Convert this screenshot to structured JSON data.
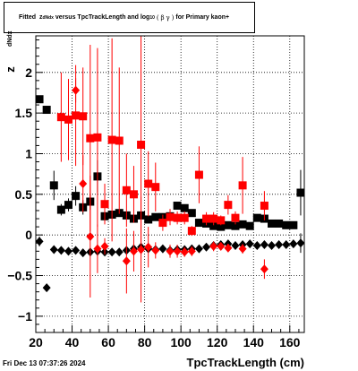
{
  "title": {
    "prefix": "Fitted",
    "var": "z",
    "var_sub": "dNdx",
    "middle": "versus TpcTrackLength and log",
    "log_sub": "10",
    "paren_open": "(",
    "beta": "β",
    "gamma": "γ",
    "paren_close": ")",
    "suffix": "for Primary kaon+"
  },
  "datestamp": "Fri Dec 13 07:37:26 2024",
  "chart_data": {
    "type": "scatter",
    "xlabel": "TpcTrackLength (cm)",
    "ylabel": "z",
    "ylabel_sub": "dNdx",
    "xlim": [
      20,
      168
    ],
    "ylim": [
      -1.2,
      2.45
    ],
    "xticks": [
      20,
      40,
      60,
      80,
      100,
      120,
      140,
      160
    ],
    "yticks": [
      -1,
      -0.5,
      0,
      0.5,
      1,
      1.5,
      2
    ],
    "ytick_labels": [
      "−1",
      "−0.5",
      "0",
      "0.5",
      "1",
      "1.5",
      "2"
    ],
    "grid": true,
    "series": [
      {
        "marker": "square",
        "color": "#000000",
        "points": [
          {
            "x": 22,
            "y": 1.67,
            "err": 0
          },
          {
            "x": 26,
            "y": 1.54,
            "err": 0
          },
          {
            "x": 30,
            "y": 0.61,
            "err": 0.18
          },
          {
            "x": 34,
            "y": 0.31,
            "err": 0.07
          },
          {
            "x": 38,
            "y": 0.37,
            "err": 0.08
          },
          {
            "x": 42,
            "y": 0.48,
            "err": 0.12
          },
          {
            "x": 46,
            "y": 0.34,
            "err": 0.09
          },
          {
            "x": 50,
            "y": 0.41,
            "err": 0.1
          },
          {
            "x": 54,
            "y": 0.72,
            "err": 0.2
          },
          {
            "x": 58,
            "y": 0.23,
            "err": 0.05
          },
          {
            "x": 62,
            "y": 0.25,
            "err": 0.04
          },
          {
            "x": 66,
            "y": 0.27,
            "err": 0.04
          },
          {
            "x": 70,
            "y": 0.24,
            "err": 0.04
          },
          {
            "x": 74,
            "y": 0.2,
            "err": 0.04
          },
          {
            "x": 78,
            "y": 0.24,
            "err": 0.03
          },
          {
            "x": 82,
            "y": 0.19,
            "err": 0.03
          },
          {
            "x": 86,
            "y": 0.22,
            "err": 0.03
          },
          {
            "x": 90,
            "y": 0.22,
            "err": 0.03
          },
          {
            "x": 94,
            "y": 0.23,
            "err": 0.03
          },
          {
            "x": 98,
            "y": 0.36,
            "err": 0.04
          },
          {
            "x": 102,
            "y": 0.33,
            "err": 0.04
          },
          {
            "x": 106,
            "y": 0.27,
            "err": 0.04
          },
          {
            "x": 110,
            "y": 0.15,
            "err": 0.03
          },
          {
            "x": 114,
            "y": 0.14,
            "err": 0.03
          },
          {
            "x": 118,
            "y": 0.11,
            "err": 0.03
          },
          {
            "x": 122,
            "y": 0.1,
            "err": 0.03
          },
          {
            "x": 126,
            "y": 0.12,
            "err": 0.03
          },
          {
            "x": 130,
            "y": 0.11,
            "err": 0.03
          },
          {
            "x": 134,
            "y": 0.13,
            "err": 0.03
          },
          {
            "x": 138,
            "y": 0.11,
            "err": 0.03
          },
          {
            "x": 142,
            "y": 0.21,
            "err": 0.04
          },
          {
            "x": 146,
            "y": 0.2,
            "err": 0.04
          },
          {
            "x": 150,
            "y": 0.14,
            "err": 0.03
          },
          {
            "x": 154,
            "y": 0.14,
            "err": 0.03
          },
          {
            "x": 158,
            "y": 0.12,
            "err": 0.03
          },
          {
            "x": 162,
            "y": 0.12,
            "err": 0.03
          },
          {
            "x": 166,
            "y": 0.52,
            "err": 0.28
          }
        ]
      },
      {
        "marker": "diamond",
        "color": "#000000",
        "points": [
          {
            "x": 22,
            "y": -0.08,
            "err": 0.06
          },
          {
            "x": 26,
            "y": -0.65,
            "err": 0
          },
          {
            "x": 30,
            "y": -0.18,
            "err": 0.03
          },
          {
            "x": 34,
            "y": -0.19,
            "err": 0.03
          },
          {
            "x": 38,
            "y": -0.2,
            "err": 0.03
          },
          {
            "x": 42,
            "y": -0.19,
            "err": 0.03
          },
          {
            "x": 46,
            "y": -0.22,
            "err": 0.03
          },
          {
            "x": 50,
            "y": -0.21,
            "err": 0.03
          },
          {
            "x": 54,
            "y": -0.2,
            "err": 0.03
          },
          {
            "x": 58,
            "y": -0.21,
            "err": 0.03
          },
          {
            "x": 62,
            "y": -0.21,
            "err": 0.03
          },
          {
            "x": 66,
            "y": -0.21,
            "err": 0.03
          },
          {
            "x": 70,
            "y": -0.19,
            "err": 0.03
          },
          {
            "x": 74,
            "y": -0.17,
            "err": 0.03
          },
          {
            "x": 78,
            "y": -0.15,
            "err": 0.03
          },
          {
            "x": 82,
            "y": -0.17,
            "err": 0.03
          },
          {
            "x": 86,
            "y": -0.18,
            "err": 0.03
          },
          {
            "x": 90,
            "y": -0.17,
            "err": 0.03
          },
          {
            "x": 94,
            "y": -0.19,
            "err": 0.03
          },
          {
            "x": 98,
            "y": -0.18,
            "err": 0.03
          },
          {
            "x": 102,
            "y": -0.18,
            "err": 0.03
          },
          {
            "x": 106,
            "y": -0.17,
            "err": 0.03
          },
          {
            "x": 110,
            "y": -0.17,
            "err": 0.03
          },
          {
            "x": 114,
            "y": -0.15,
            "err": 0.03
          },
          {
            "x": 118,
            "y": -0.13,
            "err": 0.03
          },
          {
            "x": 122,
            "y": -0.12,
            "err": 0.03
          },
          {
            "x": 126,
            "y": -0.11,
            "err": 0.03
          },
          {
            "x": 130,
            "y": -0.13,
            "err": 0.03
          },
          {
            "x": 134,
            "y": -0.12,
            "err": 0.03
          },
          {
            "x": 138,
            "y": -0.11,
            "err": 0.03
          },
          {
            "x": 142,
            "y": -0.13,
            "err": 0.03
          },
          {
            "x": 146,
            "y": -0.12,
            "err": 0.03
          },
          {
            "x": 150,
            "y": -0.13,
            "err": 0.03
          },
          {
            "x": 154,
            "y": -0.12,
            "err": 0.03
          },
          {
            "x": 158,
            "y": -0.12,
            "err": 0.03
          },
          {
            "x": 162,
            "y": -0.11,
            "err": 0.03
          },
          {
            "x": 166,
            "y": -0.1,
            "err": 0.12
          }
        ]
      },
      {
        "marker": "square",
        "color": "#ff0000",
        "points": [
          {
            "x": 34,
            "y": 1.45,
            "err": 0.55
          },
          {
            "x": 38,
            "y": 1.42,
            "err": 0.5
          },
          {
            "x": 42,
            "y": 1.47,
            "err": 0.62
          },
          {
            "x": 46,
            "y": 1.46,
            "err": 0.6
          },
          {
            "x": 50,
            "y": 1.19,
            "err": 1.15
          },
          {
            "x": 54,
            "y": 1.2,
            "err": 1.1
          },
          {
            "x": 58,
            "y": 0.38,
            "err": 0.25
          },
          {
            "x": 62,
            "y": 1.17,
            "err": 1.25
          },
          {
            "x": 66,
            "y": 1.16,
            "err": 0.9
          },
          {
            "x": 70,
            "y": 0.55,
            "err": 0.45
          },
          {
            "x": 74,
            "y": 0.5,
            "err": 0.35
          },
          {
            "x": 78,
            "y": 1.11,
            "err": 1.35
          },
          {
            "x": 82,
            "y": 0.63,
            "err": 0.4
          },
          {
            "x": 86,
            "y": 0.59,
            "err": 0.3
          },
          {
            "x": 90,
            "y": 0.15,
            "err": 0.1
          },
          {
            "x": 94,
            "y": 0.22,
            "err": 0.1
          },
          {
            "x": 98,
            "y": 0.21,
            "err": 0.08
          },
          {
            "x": 102,
            "y": 0.21,
            "err": 0.08
          },
          {
            "x": 106,
            "y": 0.05,
            "err": 0.06
          },
          {
            "x": 110,
            "y": 0.74,
            "err": 0.35
          },
          {
            "x": 114,
            "y": 0.2,
            "err": 0.08
          },
          {
            "x": 118,
            "y": 0.2,
            "err": 0.08
          },
          {
            "x": 122,
            "y": 0.18,
            "err": 0.06
          },
          {
            "x": 126,
            "y": 0.37,
            "err": 0.12
          },
          {
            "x": 130,
            "y": 0.21,
            "err": 0.08
          },
          {
            "x": 134,
            "y": 0.61,
            "err": 0.35
          },
          {
            "x": 146,
            "y": 0.36,
            "err": 0.18
          }
        ]
      },
      {
        "marker": "diamond",
        "color": "#ff0000",
        "points": [
          {
            "x": 42,
            "y": 1.78,
            "err": 0.15
          },
          {
            "x": 46,
            "y": 0.63,
            "err": 0.35
          },
          {
            "x": 50,
            "y": -0.02,
            "err": 0.75
          },
          {
            "x": 54,
            "y": -0.17,
            "err": 0.3
          },
          {
            "x": 58,
            "y": -0.14,
            "err": 0.1
          },
          {
            "x": 70,
            "y": -0.32,
            "err": 0.4
          },
          {
            "x": 74,
            "y": -0.2,
            "err": 0.25
          },
          {
            "x": 78,
            "y": -0.18,
            "err": 0.65
          },
          {
            "x": 82,
            "y": -0.15,
            "err": 0.25
          },
          {
            "x": 86,
            "y": -0.19,
            "err": 0.1
          },
          {
            "x": 94,
            "y": -0.2,
            "err": 0.08
          },
          {
            "x": 98,
            "y": -0.2,
            "err": 0.08
          },
          {
            "x": 102,
            "y": -0.21,
            "err": 0.06
          },
          {
            "x": 106,
            "y": -0.2,
            "err": 0.06
          },
          {
            "x": 118,
            "y": -0.14,
            "err": 0.06
          },
          {
            "x": 122,
            "y": -0.14,
            "err": 0.05
          },
          {
            "x": 126,
            "y": -0.16,
            "err": 0.05
          },
          {
            "x": 134,
            "y": -0.17,
            "err": 0.06
          },
          {
            "x": 146,
            "y": -0.42,
            "err": 0.12
          }
        ]
      }
    ]
  }
}
